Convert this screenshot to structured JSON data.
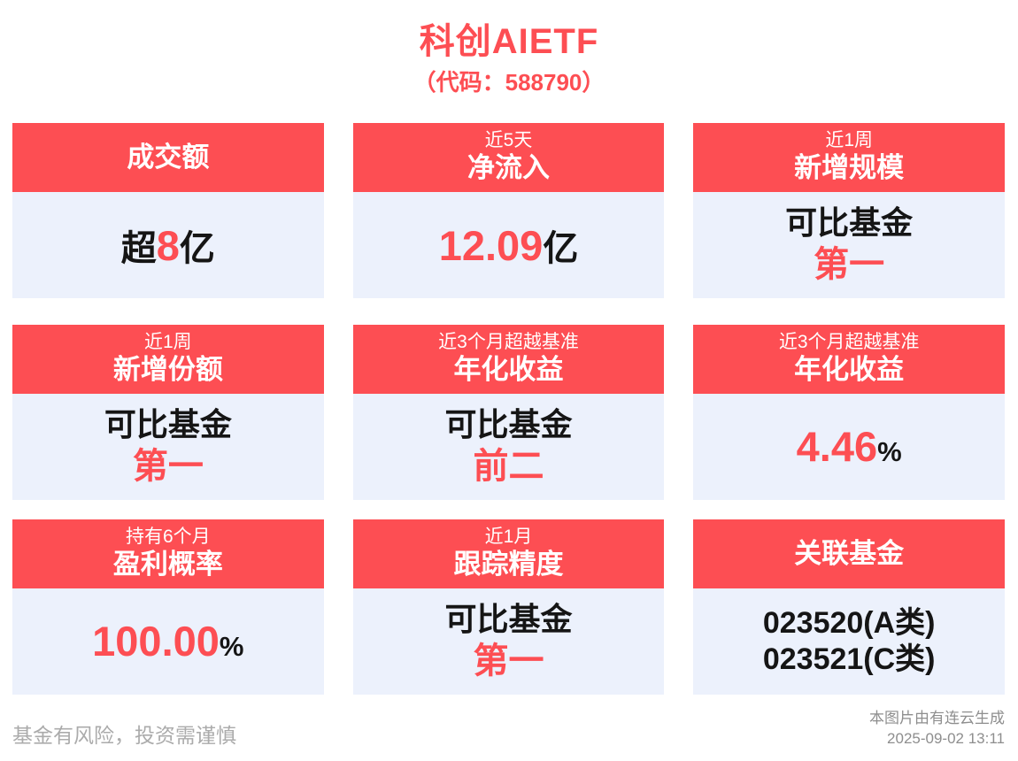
{
  "title": "科创AIETF",
  "subtitle": "（代码：588790）",
  "colors": {
    "accent_red": "#FD4E53",
    "card_body_bg": "#ECF1FC",
    "text_dark": "#151515",
    "footer_gray_left": "#ABABAB",
    "footer_gray_right": "#8E8E8E"
  },
  "cards": [
    {
      "metric": "成交额",
      "value": {
        "pre": "超",
        "main": "8",
        "suf": "亿"
      }
    },
    {
      "period": "近5天",
      "metric": "净流入",
      "value": {
        "main": "12.09",
        "suf": "亿"
      }
    },
    {
      "period": "近1周",
      "metric": "新增规模",
      "value": {
        "line1": "可比基金",
        "line2": "第一"
      }
    },
    {
      "period": "近1周",
      "metric": "新增份额",
      "value": {
        "line1": "可比基金",
        "line2": "第一"
      }
    },
    {
      "period": "近3个月超越基准",
      "metric": "年化收益",
      "value": {
        "line1": "可比基金",
        "line2": "前二"
      }
    },
    {
      "period": "近3个月超越基准",
      "metric": "年化收益",
      "value": {
        "main": "4.46",
        "suf": "%"
      }
    },
    {
      "period": "持有6个月",
      "metric": "盈利概率",
      "value": {
        "main": "100.00",
        "suf": "%"
      }
    },
    {
      "period": "近1月",
      "metric": "跟踪精度",
      "value": {
        "line1": "可比基金",
        "line2": "第一"
      }
    },
    {
      "metric": "关联基金",
      "value": {
        "line1": "023520(A类)",
        "line2": "023521(C类)"
      }
    }
  ],
  "footer": {
    "disclaimer": "基金有风险，投资需谨慎",
    "source": "本图片由有连云生成",
    "timestamp": "2025-09-02 13:11"
  }
}
